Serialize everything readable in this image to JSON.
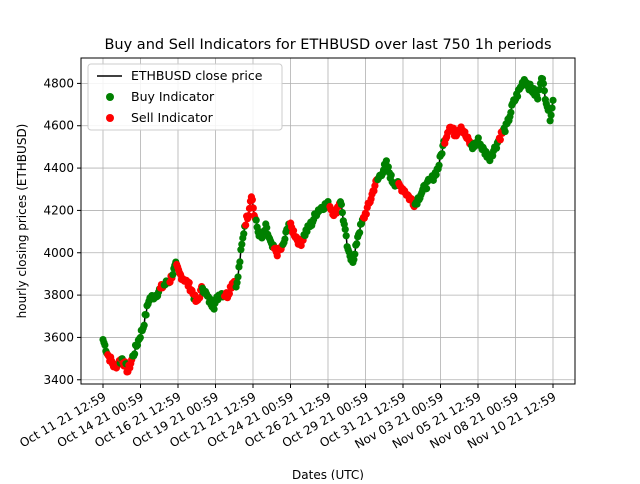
{
  "chart_data": {
    "type": "line",
    "title": "Buy and Sell Indicators for ETHBUSD over last 750 1h periods",
    "xlabel": "Dates (UTC)",
    "ylabel": "hourly closing prices (ETHBUSD)",
    "ylim": [
      3380,
      4920
    ],
    "y_ticks": [
      3400,
      3600,
      3800,
      4000,
      4200,
      4400,
      4600,
      4800
    ],
    "x_ticks": [
      "Oct 11 21 12:59",
      "Oct 14 21 00:59",
      "Oct 16 21 12:59",
      "Oct 19 21 00:59",
      "Oct 21 21 12:59",
      "Oct 24 21 00:59",
      "Oct 26 21 12:59",
      "Oct 29 21 00:59",
      "Oct 31 21 12:59",
      "Nov 03 21 00:59",
      "Nov 05 21 12:59",
      "Nov 08 21 00:59",
      "Nov 10 21 12:59"
    ],
    "grid": true,
    "legend_position": "upper-left",
    "legend": [
      "ETHBUSD close price",
      "Buy Indicator",
      "Sell Indicator"
    ],
    "colors": {
      "price": "#000000",
      "buy": "#008000",
      "sell": "#ff0000"
    },
    "price_series_name": "ETHBUSD close price",
    "buy_series_name": "Buy Indicator",
    "sell_series_name": "Sell Indicator",
    "series_keypoints": [
      [
        0,
        3590
      ],
      [
        5,
        3520
      ],
      [
        12,
        3460
      ],
      [
        20,
        3500
      ],
      [
        26,
        3440
      ],
      [
        35,
        3560
      ],
      [
        42,
        3650
      ],
      [
        48,
        3780
      ],
      [
        55,
        3800
      ],
      [
        62,
        3840
      ],
      [
        70,
        3870
      ],
      [
        76,
        3940
      ],
      [
        80,
        3900
      ],
      [
        86,
        3870
      ],
      [
        92,
        3830
      ],
      [
        98,
        3760
      ],
      [
        104,
        3840
      ],
      [
        110,
        3780
      ],
      [
        116,
        3750
      ],
      [
        122,
        3810
      ],
      [
        130,
        3800
      ],
      [
        136,
        3870
      ],
      [
        140,
        3850
      ],
      [
        144,
        4000
      ],
      [
        148,
        4130
      ],
      [
        152,
        4190
      ],
      [
        155,
        4280
      ],
      [
        158,
        4180
      ],
      [
        162,
        4100
      ],
      [
        166,
        4070
      ],
      [
        170,
        4120
      ],
      [
        176,
        4030
      ],
      [
        182,
        4000
      ],
      [
        188,
        4030
      ],
      [
        194,
        4140
      ],
      [
        200,
        4090
      ],
      [
        206,
        4040
      ],
      [
        212,
        4100
      ],
      [
        218,
        4140
      ],
      [
        224,
        4200
      ],
      [
        230,
        4220
      ],
      [
        236,
        4230
      ],
      [
        242,
        4180
      ],
      [
        248,
        4250
      ],
      [
        252,
        4130
      ],
      [
        256,
        4000
      ],
      [
        262,
        3960
      ],
      [
        266,
        4080
      ],
      [
        272,
        4160
      ],
      [
        278,
        4230
      ],
      [
        284,
        4320
      ],
      [
        290,
        4370
      ],
      [
        296,
        4420
      ],
      [
        302,
        4340
      ],
      [
        308,
        4320
      ],
      [
        314,
        4300
      ],
      [
        320,
        4260
      ],
      [
        326,
        4230
      ],
      [
        332,
        4280
      ],
      [
        338,
        4320
      ],
      [
        344,
        4350
      ],
      [
        350,
        4400
      ],
      [
        356,
        4520
      ],
      [
        362,
        4600
      ],
      [
        368,
        4560
      ],
      [
        374,
        4600
      ],
      [
        380,
        4540
      ],
      [
        386,
        4500
      ],
      [
        392,
        4530
      ],
      [
        398,
        4480
      ],
      [
        404,
        4450
      ],
      [
        410,
        4500
      ],
      [
        416,
        4560
      ],
      [
        422,
        4600
      ],
      [
        428,
        4700
      ],
      [
        434,
        4760
      ],
      [
        440,
        4820
      ],
      [
        446,
        4780
      ],
      [
        450,
        4760
      ],
      [
        454,
        4730
      ],
      [
        458,
        4840
      ],
      [
        461,
        4760
      ],
      [
        464,
        4700
      ],
      [
        467,
        4640
      ],
      [
        470,
        4720
      ]
    ],
    "x_max_index": 470,
    "signals": [
      "BBBBBSSSSSSSSSSSSSBSBSSSBSSSSSSBBBBBBBBBBBBBBBBBBBBBBBBBBBBBSSSSBBBBBBSSSBBBBSSSSSSSSSSSSSSSSSSBSSSSSSSSBBBBBBBBBBBBBBBBBBBBBBBSSSSSSSSSSSSBBBBBBBBBBSSSSSSSSSSSBBBBBBBBBBBBBBBBBBBSSSSSSSSSBBBBBBBBSSSSSSSSSSSSSSBBBBBBBBBBBBBBBBBBBBBBBBBBBSSSSSSSSSSSBBBBBBBBBBBBBBBBBBBBBBBBSSSSSSSSSSSSSSSBBBBBBBBBBBBBBBBBBBBBBSSSSSSSSSSSSSSSSSBBBBBBBBBBBBBBBBBBBBBBBBBBBBBBBSSSSSSSSSSSSSSSSSSSSSSSSSSSSBBBBBBBBBBBBBBBBBBBBBBBBBBBBBSSSSS"
    ]
  }
}
